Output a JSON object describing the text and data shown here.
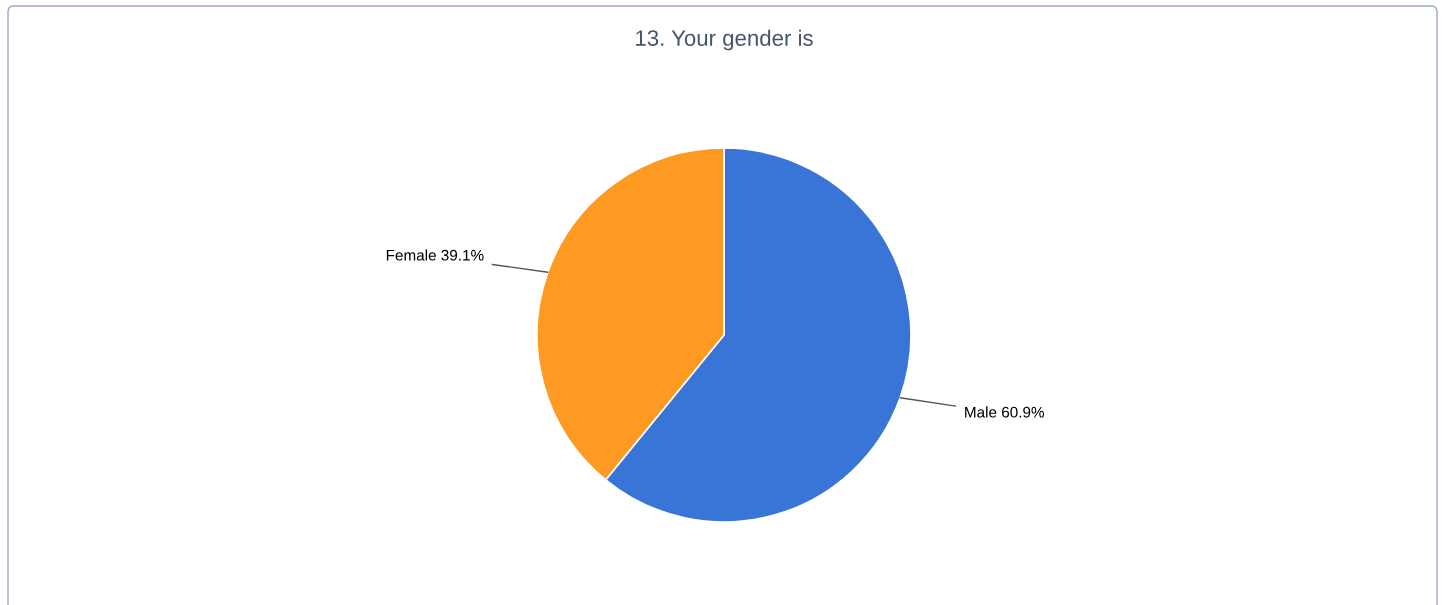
{
  "chart_data": {
    "type": "pie",
    "title": "13. Your gender is",
    "categories": [
      "Male",
      "Female"
    ],
    "values": [
      60.9,
      39.1
    ],
    "value_labels": [
      "60.9%",
      "39.1%"
    ],
    "colors": [
      "#3875d7",
      "#fe9a22"
    ],
    "legend": false
  }
}
